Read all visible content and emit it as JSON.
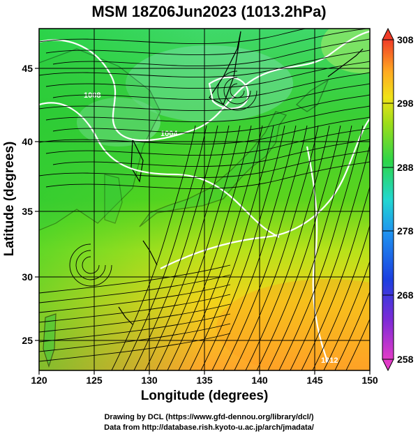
{
  "title": "MSM 18Z06Jun2023 (1013.2hPa)",
  "x_axis": {
    "label": "Longitude (degrees)",
    "ticks": [
      "120",
      "125",
      "130",
      "135",
      "140",
      "145",
      "150"
    ]
  },
  "y_axis": {
    "label": "Latitude  (degrees)",
    "ticks": [
      "25",
      "30",
      "35",
      "40",
      "45"
    ]
  },
  "colorbar": {
    "ticks": [
      "258",
      "268",
      "278",
      "288",
      "298",
      "308"
    ]
  },
  "contour_labels": [
    "1008",
    "1004",
    "1012"
  ],
  "credits": {
    "line1": "Drawing by DCL (https://www.gfd-dennou.org/library/dcl/)",
    "line2": "Data from http://database.rish.kyoto-u.ac.jp/arch/jmadata/"
  },
  "colors": {
    "cold": "#2fd44a",
    "warm": "#ffb020",
    "isobar": "#ffffff",
    "streamline": "#000000"
  }
}
